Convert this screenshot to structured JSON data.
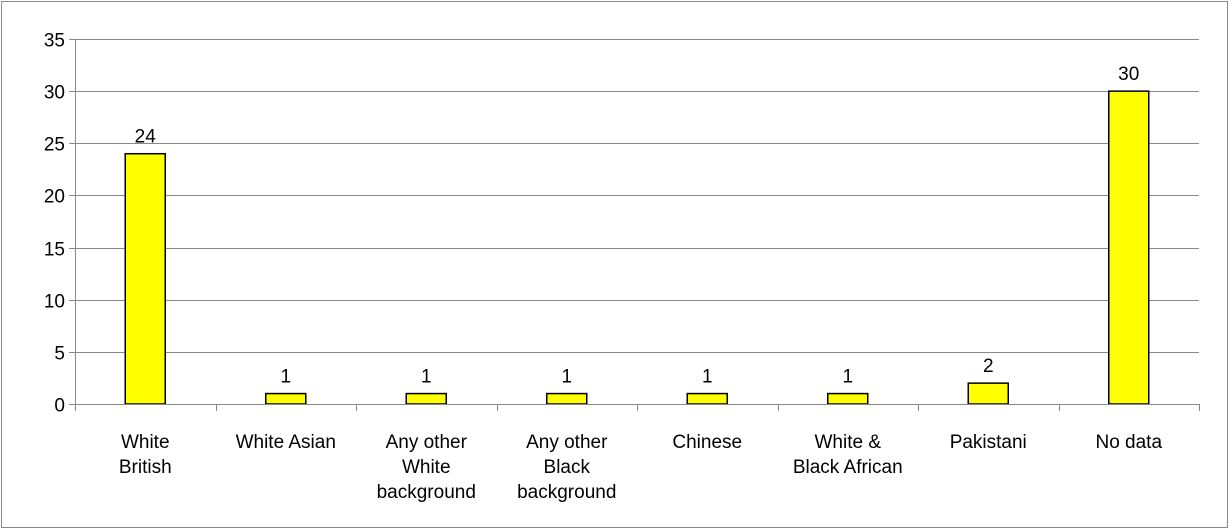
{
  "chart_data": {
    "type": "bar",
    "title": "",
    "xlabel": "",
    "ylabel": "",
    "categories": [
      [
        "White",
        "British"
      ],
      [
        "White Asian"
      ],
      [
        "Any other",
        "White",
        "background"
      ],
      [
        "Any other",
        "Black",
        "background"
      ],
      [
        "Chinese"
      ],
      [
        "White &",
        "Black African"
      ],
      [
        "Pakistani"
      ],
      [
        "No data"
      ]
    ],
    "values": [
      24,
      1,
      1,
      1,
      1,
      1,
      2,
      30
    ],
    "data_labels": [
      "24",
      "1",
      "1",
      "1",
      "1",
      "1",
      "2",
      "30"
    ],
    "ylim": [
      0,
      35
    ],
    "y_ticks": [
      0,
      5,
      10,
      15,
      20,
      25,
      30,
      35
    ],
    "grid": true,
    "legend": "none",
    "colors": {
      "bar_fill": "#ffff00",
      "bar_stroke": "#000000",
      "gridline": "#898989",
      "axis": "#898989",
      "frame": "#898989"
    }
  }
}
